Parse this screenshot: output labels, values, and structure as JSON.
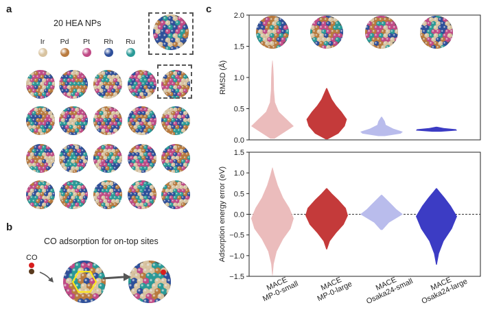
{
  "panels": {
    "a": "a",
    "b": "b",
    "c": "c"
  },
  "panel_a": {
    "title": "20 HEA NPs",
    "elements": [
      {
        "label": "Ir",
        "color": "#d8c3a0"
      },
      {
        "label": "Pd",
        "color": "#b97a3e"
      },
      {
        "label": "Pt",
        "color": "#c04a86"
      },
      {
        "label": "Rh",
        "color": "#2e4f9a"
      },
      {
        "label": "Ru",
        "color": "#2a9a97"
      }
    ],
    "nanoparticle_count": 20
  },
  "panel_b": {
    "title": "CO adsorption for on-top sites",
    "molecule_label": "CO",
    "colors": {
      "O": "#d81e1e",
      "C": "#5a3a1e",
      "site": "#ffe81a",
      "arrow": "#555555"
    }
  },
  "chart_data": [
    {
      "type": "violin",
      "title": "",
      "xlabel": "",
      "ylabel": "RMSD (Å)",
      "ylim": [
        0,
        2.0
      ],
      "yticks": [
        "0.0",
        "0.5",
        "1.0",
        "1.5",
        "2.0"
      ],
      "grid": false,
      "categories": [
        "MACE\nMP-0-small",
        "MACE\nMP-0-large",
        "MACE\nOsaka24-small",
        "MACE\nOsaka24-large"
      ],
      "series": [
        {
          "name": "MACE MP-0-small",
          "color": "#ebbcbc",
          "min": 0.02,
          "max": 1.27,
          "median": 0.22,
          "profile": [
            [
              0.02,
              0.1
            ],
            [
              0.12,
              0.55
            ],
            [
              0.22,
              1.0
            ],
            [
              0.32,
              0.7
            ],
            [
              0.45,
              0.3
            ],
            [
              0.6,
              0.12
            ],
            [
              0.8,
              0.07
            ],
            [
              1.0,
              0.06
            ],
            [
              1.15,
              0.04
            ],
            [
              1.27,
              0.01
            ]
          ]
        },
        {
          "name": "MACE MP-0-large",
          "color": "#c43a3a",
          "min": 0.01,
          "max": 0.83,
          "median": 0.33,
          "profile": [
            [
              0.01,
              0.05
            ],
            [
              0.1,
              0.55
            ],
            [
              0.22,
              0.85
            ],
            [
              0.33,
              0.95
            ],
            [
              0.45,
              0.7
            ],
            [
              0.55,
              0.45
            ],
            [
              0.65,
              0.25
            ],
            [
              0.75,
              0.12
            ],
            [
              0.83,
              0.02
            ]
          ]
        },
        {
          "name": "MACE Osaka24-small",
          "color": "#b9bcec",
          "min": 0.06,
          "max": 0.37,
          "median": 0.13,
          "profile": [
            [
              0.06,
              0.15
            ],
            [
              0.1,
              0.9
            ],
            [
              0.13,
              1.0
            ],
            [
              0.18,
              0.55
            ],
            [
              0.24,
              0.2
            ],
            [
              0.3,
              0.15
            ],
            [
              0.37,
              0.02
            ]
          ]
        },
        {
          "name": "MACE Osaka24-large",
          "color": "#3c3cc4",
          "min": 0.13,
          "max": 0.21,
          "median": 0.16,
          "profile": [
            [
              0.13,
              0.2
            ],
            [
              0.15,
              1.0
            ],
            [
              0.17,
              0.95
            ],
            [
              0.19,
              0.35
            ],
            [
              0.21,
              0.03
            ]
          ]
        }
      ]
    },
    {
      "type": "violin",
      "title": "",
      "xlabel": "",
      "ylabel": "Adsorption energy error (eV)",
      "ylim": [
        -1.5,
        1.5
      ],
      "yticks": [
        "−1.5",
        "−1.0",
        "−0.5",
        "0.0",
        "0.5",
        "1.0",
        "1.5"
      ],
      "reference_line": 0.0,
      "grid": false,
      "categories": [
        "MACE\nMP-0-small",
        "MACE\nMP-0-large",
        "MACE\nOsaka24-small",
        "MACE\nOsaka24-large"
      ],
      "series": [
        {
          "name": "MACE MP-0-small",
          "color": "#ebbcbc",
          "min": -1.48,
          "max": 1.13,
          "median": -0.1,
          "profile": [
            [
              -1.48,
              0.01
            ],
            [
              -1.2,
              0.06
            ],
            [
              -0.9,
              0.2
            ],
            [
              -0.6,
              0.5
            ],
            [
              -0.35,
              0.85
            ],
            [
              -0.1,
              1.0
            ],
            [
              0.15,
              0.8
            ],
            [
              0.4,
              0.5
            ],
            [
              0.7,
              0.25
            ],
            [
              0.95,
              0.1
            ],
            [
              1.13,
              0.01
            ]
          ]
        },
        {
          "name": "MACE MP-0-large",
          "color": "#c43a3a",
          "min": -0.85,
          "max": 0.63,
          "median": -0.03,
          "profile": [
            [
              -0.85,
              0.02
            ],
            [
              -0.65,
              0.15
            ],
            [
              -0.45,
              0.45
            ],
            [
              -0.25,
              0.8
            ],
            [
              -0.03,
              1.0
            ],
            [
              0.15,
              0.9
            ],
            [
              0.35,
              0.55
            ],
            [
              0.5,
              0.25
            ],
            [
              0.63,
              0.02
            ]
          ]
        },
        {
          "name": "MACE Osaka24-small",
          "color": "#b9bcec",
          "min": -0.38,
          "max": 0.47,
          "median": 0.0,
          "profile": [
            [
              -0.38,
              0.04
            ],
            [
              -0.2,
              0.35
            ],
            [
              0.0,
              1.0
            ],
            [
              0.12,
              0.7
            ],
            [
              0.25,
              0.45
            ],
            [
              0.38,
              0.2
            ],
            [
              0.47,
              0.02
            ]
          ]
        },
        {
          "name": "MACE Osaka24-large",
          "color": "#3c3cc4",
          "min": -1.22,
          "max": 0.63,
          "median": -0.05,
          "profile": [
            [
              -1.22,
              0.02
            ],
            [
              -0.95,
              0.12
            ],
            [
              -0.65,
              0.35
            ],
            [
              -0.35,
              0.75
            ],
            [
              -0.05,
              1.0
            ],
            [
              0.2,
              0.7
            ],
            [
              0.4,
              0.4
            ],
            [
              0.55,
              0.15
            ],
            [
              0.63,
              0.02
            ]
          ]
        }
      ]
    }
  ]
}
